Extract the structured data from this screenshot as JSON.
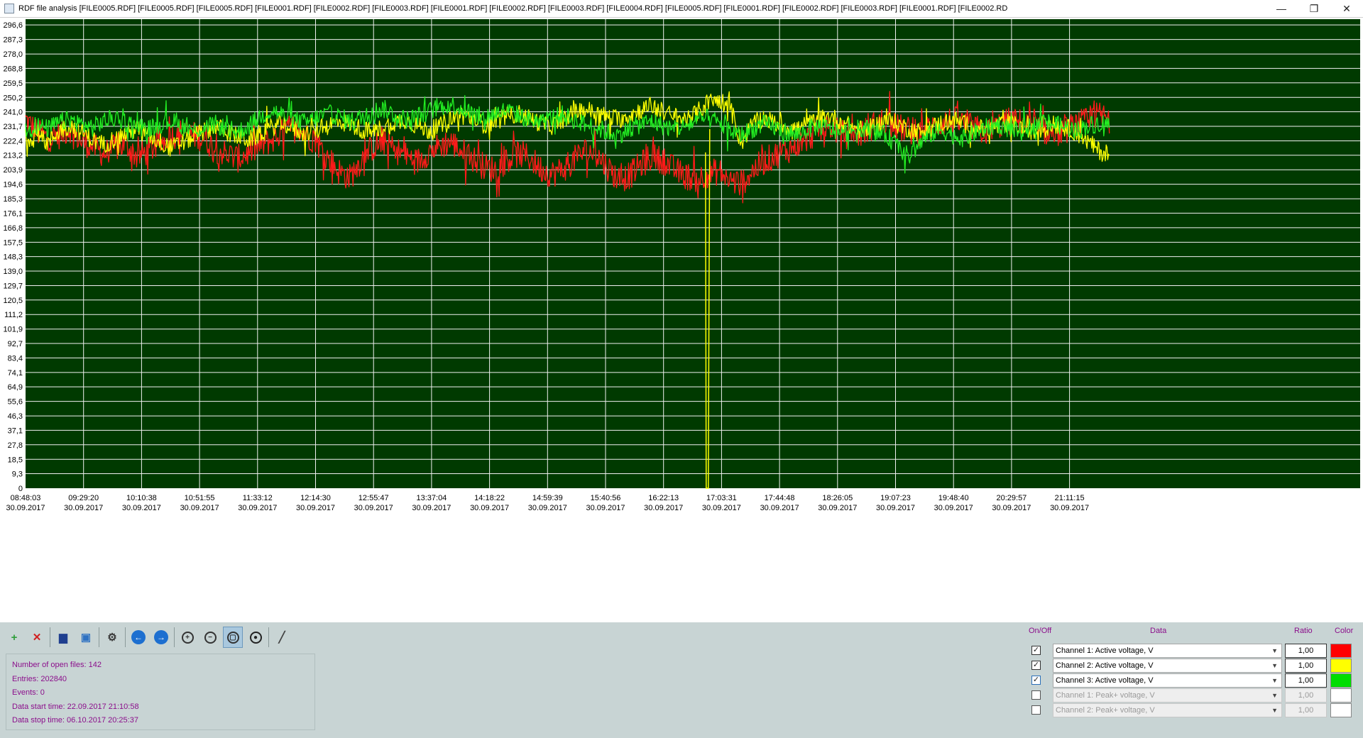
{
  "window": {
    "title": "RDF file analysis [FILE0005.RDF] [FILE0005.RDF] [FILE0005.RDF] [FILE0001.RDF] [FILE0002.RDF] [FILE0003.RDF] [FILE0001.RDF] [FILE0002.RDF] [FILE0003.RDF] [FILE0004.RDF] [FILE0005.RDF] [FILE0001.RDF] [FILE0002.RDF] [FILE0003.RDF] [FILE0001.RDF] [FILE0002.RD",
    "minimize_glyph": "—",
    "maximize_glyph": "❐",
    "close_glyph": "✕"
  },
  "colors": {
    "plot_background": "#003a00",
    "grid": "#f0f0f0",
    "tick_text": "#000000",
    "ch1": "#ff1a1a",
    "ch2": "#ffff00",
    "ch3": "#22ee22"
  },
  "chart_data": {
    "type": "line",
    "grid": true,
    "y_ticks": [
      "296,6",
      "287,3",
      "278,0",
      "268,8",
      "259,5",
      "250,2",
      "241,0",
      "231,7",
      "222,4",
      "213,2",
      "203,9",
      "194,6",
      "185,3",
      "176,1",
      "166,8",
      "157,5",
      "148,3",
      "139,0",
      "129,7",
      "120,5",
      "111,2",
      "101,9",
      "92,7",
      "83,4",
      "74,1",
      "64,9",
      "55,6",
      "46,3",
      "37,1",
      "27,8",
      "18,5",
      "9,3",
      "0"
    ],
    "ylim": [
      0,
      300.3
    ],
    "x_ticks": [
      {
        "time": "08:48:03",
        "date": "30.09.2017"
      },
      {
        "time": "09:29:20",
        "date": "30.09.2017"
      },
      {
        "time": "10:10:38",
        "date": "30.09.2017"
      },
      {
        "time": "10:51:55",
        "date": "30.09.2017"
      },
      {
        "time": "11:33:12",
        "date": "30.09.2017"
      },
      {
        "time": "12:14:30",
        "date": "30.09.2017"
      },
      {
        "time": "12:55:47",
        "date": "30.09.2017"
      },
      {
        "time": "13:37:04",
        "date": "30.09.2017"
      },
      {
        "time": "14:18:22",
        "date": "30.09.2017"
      },
      {
        "time": "14:59:39",
        "date": "30.09.2017"
      },
      {
        "time": "15:40:56",
        "date": "30.09.2017"
      },
      {
        "time": "16:22:13",
        "date": "30.09.2017"
      },
      {
        "time": "17:03:31",
        "date": "30.09.2017"
      },
      {
        "time": "17:44:48",
        "date": "30.09.2017"
      },
      {
        "time": "18:26:05",
        "date": "30.09.2017"
      },
      {
        "time": "19:07:23",
        "date": "30.09.2017"
      },
      {
        "time": "19:48:40",
        "date": "30.09.2017"
      },
      {
        "time": "20:29:57",
        "date": "30.09.2017"
      },
      {
        "time": "21:11:15",
        "date": "30.09.2017"
      }
    ],
    "x_span_ticks": 18.7,
    "series": [
      {
        "name": "Channel 1: Active voltage, V",
        "color": "#ff1a1a",
        "values": [
          236,
          228,
          224,
          226,
          230,
          222,
          219,
          214,
          218,
          220,
          212,
          216,
          221,
          225,
          228,
          226,
          224,
          217,
          214,
          211,
          215,
          219,
          223,
          228,
          231,
          227,
          222,
          212,
          203,
          199,
          210,
          218,
          222,
          217,
          213,
          209,
          215,
          219,
          222,
          216,
          211,
          206,
          204,
          210,
          214,
          212,
          205,
          201,
          204,
          210,
          216,
          214,
          206,
          198,
          200,
          207,
          212,
          210,
          204,
          200,
          198,
          201,
          203,
          197,
          195,
          203,
          209,
          213,
          216,
          220,
          224,
          230,
          232,
          227,
          225,
          228,
          233,
          236,
          231,
          229,
          227,
          231,
          234,
          236,
          233,
          230,
          228,
          232,
          235,
          234,
          231,
          229,
          227,
          229,
          233,
          235,
          239,
          236
        ]
      },
      {
        "name": "Channel 2: Active voltage, V",
        "color": "#ffff00",
        "values": [
          224,
          226,
          221,
          229,
          232,
          228,
          223,
          220,
          224,
          227,
          230,
          226,
          222,
          218,
          221,
          225,
          229,
          232,
          228,
          225,
          223,
          227,
          231,
          234,
          230,
          227,
          229,
          232,
          235,
          233,
          230,
          228,
          231,
          234,
          236,
          232,
          229,
          231,
          237,
          239,
          236,
          233,
          235,
          238,
          240,
          237,
          234,
          232,
          236,
          240,
          243,
          240,
          238,
          236,
          239,
          242,
          245,
          241,
          238,
          236,
          240,
          247,
          249,
          244,
          221,
          233,
          237,
          234,
          232,
          230,
          233,
          236,
          238,
          234,
          231,
          229,
          232,
          236,
          233,
          230,
          228,
          231,
          234,
          236,
          233,
          231,
          229,
          232,
          234,
          231,
          228,
          230,
          233,
          231,
          228,
          222,
          216,
          213
        ]
      },
      {
        "name": "Channel 3: Active voltage, V",
        "color": "#22ee22",
        "values": [
          229,
          232,
          230,
          234,
          236,
          233,
          231,
          235,
          237,
          234,
          232,
          230,
          233,
          235,
          232,
          229,
          231,
          233,
          230,
          228,
          232,
          238,
          242,
          239,
          236,
          234,
          237,
          240,
          238,
          235,
          237,
          241,
          243,
          239,
          236,
          238,
          241,
          244,
          246,
          243,
          240,
          237,
          240,
          242,
          239,
          236,
          234,
          237,
          239,
          236,
          233,
          231,
          228,
          226,
          230,
          233,
          235,
          232,
          230,
          232,
          235,
          237,
          234,
          229,
          226,
          230,
          233,
          231,
          228,
          226,
          230,
          232,
          230,
          227,
          229,
          231,
          228,
          226,
          219,
          212,
          221,
          227,
          229,
          226,
          224,
          228,
          231,
          233,
          230,
          228,
          232,
          235,
          233,
          231,
          229,
          232,
          234,
          233
        ]
      }
    ],
    "spike": {
      "series": "Channel 2: Active voltage, V",
      "x_tick_fraction": 11.76,
      "min_value": 0,
      "recover_value": 128
    }
  },
  "toolbar": {
    "buttons": [
      {
        "name": "open-file-button",
        "icon": "add-file-icon",
        "color": "#2e9d3a",
        "glyph": "+"
      },
      {
        "name": "close-file-button",
        "icon": "delete-file-icon",
        "color": "#d02020",
        "glyph": "✕"
      },
      {
        "name": "print-button",
        "icon": "printer-icon",
        "color": "#1f3f8f",
        "glyph": "▆"
      },
      {
        "name": "export-image-button",
        "icon": "image-icon",
        "color": "#2f72c2",
        "glyph": "▣"
      },
      {
        "name": "settings-button",
        "icon": "gear-icon",
        "color": "#3a3a3a",
        "glyph": "⚙"
      },
      {
        "name": "back-button",
        "icon": "arrow-left-icon",
        "color": "#1d6fd0",
        "glyph": "←"
      },
      {
        "name": "forward-button",
        "icon": "arrow-right-icon",
        "color": "#1d6fd0",
        "glyph": "→"
      },
      {
        "name": "zoom-in-button",
        "icon": "zoom-in-icon",
        "color": "#333",
        "glyph": "+"
      },
      {
        "name": "zoom-out-button",
        "icon": "zoom-out-icon",
        "color": "#333",
        "glyph": "−"
      },
      {
        "name": "zoom-area-button",
        "icon": "zoom-area-icon",
        "color": "#333",
        "glyph": "▢"
      },
      {
        "name": "zoom-fit-button",
        "icon": "zoom-fit-icon",
        "color": "#222",
        "glyph": "●"
      },
      {
        "name": "measure-button",
        "icon": "ruler-icon",
        "color": "#444",
        "glyph": "╱"
      }
    ]
  },
  "info": {
    "open_files": "Number of open files: 142",
    "entries": "Entries: 202840",
    "events": "Events: 0",
    "start_time": "Data start time: 22.09.2017 21:10:58",
    "stop_time": "Data stop time: 06.10.2017 20:25:37"
  },
  "channels": {
    "header_onoff": "On/Off",
    "header_data": "Data",
    "header_ratio": "Ratio",
    "header_color": "Color",
    "rows": [
      {
        "checked": true,
        "label": "Channel 1: Active voltage, V",
        "ratio": "1,00",
        "color": "#ff0000",
        "disabled": false,
        "focused": false
      },
      {
        "checked": true,
        "label": "Channel 2: Active voltage, V",
        "ratio": "1,00",
        "color": "#ffff00",
        "disabled": false,
        "focused": false
      },
      {
        "checked": true,
        "label": "Channel 3: Active voltage, V",
        "ratio": "1,00",
        "color": "#00dd00",
        "disabled": false,
        "focused": true
      },
      {
        "checked": false,
        "label": "Channel 1: Peak+ voltage, V",
        "ratio": "1,00",
        "color": "#ffffff",
        "disabled": true,
        "focused": false
      },
      {
        "checked": false,
        "label": "Channel 2: Peak+ voltage, V",
        "ratio": "1,00",
        "color": "#ffffff",
        "disabled": true,
        "focused": false
      }
    ]
  }
}
